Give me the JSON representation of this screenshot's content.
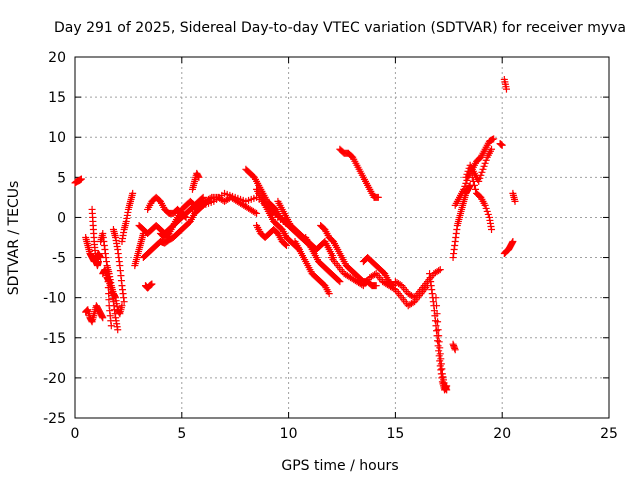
{
  "chart_data": {
    "type": "scatter",
    "title": "Day 291 of 2025, Sidereal Day-to-day VTEC variation (SDTVAR) for receiver myva",
    "xlabel": "GPS time / hours",
    "ylabel": "SDTVAR / TECUs",
    "xlim": [
      0,
      25
    ],
    "ylim": [
      -25,
      20
    ],
    "x_ticks": [
      "0",
      "5",
      "10",
      "15",
      "20",
      "25"
    ],
    "y_ticks": [
      "-25",
      "-20",
      "-15",
      "-10",
      "-5",
      "0",
      "5",
      "10",
      "15",
      "20"
    ],
    "grid": true,
    "marker": "+",
    "color": "#ff0000",
    "segments": [
      {
        "name": "arc-01",
        "x": [
          0.0,
          0.1,
          0.2,
          0.3
        ],
        "y": [
          4.3,
          4.5,
          4.6,
          4.8
        ]
      },
      {
        "name": "arc-02",
        "x": [
          0.5,
          0.6,
          0.7,
          0.8,
          0.9,
          1.0,
          1.1,
          1.2,
          1.3
        ],
        "y": [
          -11.8,
          -11.5,
          -12.5,
          -13.0,
          -12.0,
          -11.0,
          -11.5,
          -12.0,
          -12.5
        ]
      },
      {
        "name": "arc-03",
        "x": [
          0.5,
          0.6,
          0.7,
          0.8,
          0.9,
          1.0,
          1.1,
          1.2
        ],
        "y": [
          -2.5,
          -3.5,
          -4.5,
          -5.0,
          -5.5,
          -5.0,
          -4.5,
          -5.0
        ]
      },
      {
        "name": "arc-04",
        "x": [
          0.8,
          0.85,
          0.9,
          0.95,
          1.0,
          1.05,
          1.1
        ],
        "y": [
          1.0,
          -1.0,
          -3.0,
          -4.5,
          -5.5,
          -6.0,
          -5.5
        ]
      },
      {
        "name": "arc-05",
        "x": [
          1.2,
          1.3,
          1.4,
          1.5,
          1.55,
          1.6,
          1.7
        ],
        "y": [
          -3.0,
          -2.0,
          -4.0,
          -6.0,
          -8.0,
          -11.0,
          -13.5
        ]
      },
      {
        "name": "arc-06",
        "x": [
          1.3,
          1.4,
          1.5,
          1.6,
          1.7,
          1.8,
          1.9,
          2.0
        ],
        "y": [
          -7.0,
          -6.5,
          -7.5,
          -8.0,
          -9.0,
          -10.5,
          -12.5,
          -14.0
        ]
      },
      {
        "name": "arc-07",
        "x": [
          1.5,
          1.6,
          1.7,
          1.8,
          1.9,
          2.0,
          2.1,
          2.2
        ],
        "y": [
          -6.0,
          -7.0,
          -8.5,
          -9.5,
          -10.0,
          -11.5,
          -12.0,
          -11.0
        ]
      },
      {
        "name": "arc-08",
        "x": [
          1.8,
          1.9,
          2.0,
          2.1,
          2.2,
          2.3
        ],
        "y": [
          -1.5,
          -2.5,
          -4.0,
          -6.0,
          -8.5,
          -10.5
        ]
      },
      {
        "name": "arc-09",
        "x": [
          2.2,
          2.3,
          2.4,
          2.5,
          2.6,
          2.7
        ],
        "y": [
          -3.0,
          -1.5,
          -0.5,
          1.0,
          2.0,
          3.0
        ]
      },
      {
        "name": "arc-10",
        "x": [
          2.8,
          2.9,
          3.0,
          3.1,
          3.2
        ],
        "y": [
          -6.0,
          -5.0,
          -4.0,
          -3.0,
          -2.0
        ]
      },
      {
        "name": "arc-11",
        "x": [
          3.3,
          3.4,
          3.5,
          3.6
        ],
        "y": [
          -8.5,
          -8.8,
          -8.5,
          -8.3
        ]
      },
      {
        "name": "arc-12",
        "x": [
          3.2,
          3.4,
          3.6,
          3.8,
          4.0,
          4.2,
          4.4,
          4.6,
          4.8,
          5.0,
          5.2,
          5.4,
          5.6,
          5.8
        ],
        "y": [
          -5.0,
          -4.5,
          -4.0,
          -3.5,
          -3.0,
          -3.2,
          -2.8,
          -2.5,
          -2.0,
          -1.5,
          -1.0,
          -0.5,
          0.5,
          1.0
        ]
      },
      {
        "name": "arc-13",
        "x": [
          3.0,
          3.2,
          3.4,
          3.6,
          3.8,
          4.0,
          4.2,
          4.4,
          4.6,
          4.8,
          5.0,
          5.2,
          5.4,
          5.6,
          5.8,
          6.0
        ],
        "y": [
          -1.0,
          -1.5,
          -2.0,
          -1.5,
          -1.0,
          -1.5,
          -2.0,
          -1.5,
          -1.0,
          -0.5,
          0.0,
          0.5,
          1.0,
          1.5,
          2.0,
          2.5
        ]
      },
      {
        "name": "arc-14",
        "x": [
          3.4,
          3.6,
          3.8,
          4.0,
          4.2,
          4.4,
          4.6,
          4.8,
          5.0,
          5.2
        ],
        "y": [
          1.0,
          2.0,
          2.5,
          2.0,
          1.0,
          0.5,
          0.5,
          1.0,
          0.5,
          0.0
        ]
      },
      {
        "name": "arc-15",
        "x": [
          4.0,
          4.2,
          4.4,
          4.6,
          4.8,
          5.0,
          5.2,
          5.4,
          5.6,
          5.8,
          6.0,
          6.2
        ],
        "y": [
          -2.0,
          -2.5,
          -2.0,
          -1.0,
          0.0,
          1.0,
          1.5,
          2.0,
          1.5,
          1.0,
          1.5,
          2.0
        ]
      },
      {
        "name": "arc-16",
        "x": [
          5.5,
          5.6,
          5.7,
          5.8
        ],
        "y": [
          3.5,
          4.5,
          5.5,
          5.0
        ]
      },
      {
        "name": "arc-17",
        "x": [
          5.5,
          5.8,
          6.1,
          6.4,
          6.7,
          7.0,
          7.3,
          7.6,
          7.9,
          8.2,
          8.5
        ],
        "y": [
          1.0,
          1.5,
          2.0,
          2.5,
          2.5,
          2.0,
          2.5,
          2.0,
          1.5,
          1.0,
          0.5
        ]
      },
      {
        "name": "arc-18",
        "x": [
          6.0,
          6.5,
          7.0,
          7.5,
          8.0,
          8.5,
          9.0,
          9.5,
          10.0
        ],
        "y": [
          1.5,
          2.0,
          3.0,
          2.5,
          2.0,
          2.5,
          1.5,
          0.0,
          -1.0
        ]
      },
      {
        "name": "arc-19",
        "x": [
          8.0,
          8.2,
          8.4,
          8.6,
          8.8,
          9.0,
          9.2,
          9.4,
          9.6,
          9.8,
          10.0,
          10.2,
          10.4,
          10.6
        ],
        "y": [
          6.0,
          5.5,
          5.0,
          4.0,
          3.0,
          2.0,
          1.5,
          1.0,
          0.0,
          -0.5,
          -1.0,
          -1.5,
          -2.0,
          -2.5
        ]
      },
      {
        "name": "arc-20",
        "x": [
          8.5,
          8.7,
          8.9,
          9.1,
          9.3,
          9.5,
          9.7,
          9.9,
          10.1,
          10.3,
          10.5
        ],
        "y": [
          3.5,
          2.5,
          1.5,
          0.5,
          -0.5,
          -1.0,
          -1.5,
          -2.5,
          -3.0,
          -3.5,
          -4.0
        ]
      },
      {
        "name": "arc-21",
        "x": [
          8.5,
          8.7,
          8.9,
          9.1,
          9.3,
          9.5,
          9.7,
          9.9
        ],
        "y": [
          -1.0,
          -2.0,
          -2.5,
          -2.0,
          -1.5,
          -2.0,
          -3.0,
          -3.5
        ]
      },
      {
        "name": "arc-22",
        "x": [
          9.0,
          9.2,
          9.4,
          9.6,
          9.8,
          10.0,
          10.2,
          10.4,
          10.6,
          10.8,
          11.0,
          11.2
        ],
        "y": [
          1.5,
          1.0,
          0.5,
          0.0,
          -0.5,
          -1.0,
          -1.5,
          -2.0,
          -2.5,
          -3.0,
          -3.5,
          -4.0
        ]
      },
      {
        "name": "arc-23",
        "x": [
          9.5,
          9.7,
          9.9,
          10.1,
          10.3,
          10.5,
          10.7,
          10.9,
          11.1,
          11.3,
          11.5,
          11.7,
          11.9,
          12.1
        ],
        "y": [
          2.0,
          1.0,
          0.0,
          -1.0,
          -1.5,
          -2.0,
          -2.5,
          -3.0,
          -3.5,
          -4.0,
          -3.5,
          -3.0,
          -4.0,
          -5.0
        ]
      },
      {
        "name": "arc-24",
        "x": [
          10.3,
          10.5,
          10.7,
          10.9,
          11.1,
          11.3,
          11.5,
          11.7,
          11.9
        ],
        "y": [
          -3.0,
          -4.0,
          -5.0,
          -6.0,
          -7.0,
          -7.5,
          -8.0,
          -8.5,
          -9.5
        ]
      },
      {
        "name": "arc-25",
        "x": [
          10.8,
          11.0,
          11.2,
          11.4,
          11.6,
          11.8,
          12.0,
          12.2,
          12.4
        ],
        "y": [
          -2.5,
          -3.5,
          -4.5,
          -5.5,
          -6.0,
          -6.5,
          -7.0,
          -7.5,
          -8.0
        ]
      },
      {
        "name": "arc-26",
        "x": [
          11.5,
          11.7,
          11.9,
          12.1,
          12.3,
          12.5,
          12.7,
          12.9,
          13.1,
          13.3,
          13.5,
          13.7,
          13.9,
          14.1
        ],
        "y": [
          -1.0,
          -1.5,
          -2.5,
          -3.0,
          -4.0,
          -5.0,
          -6.0,
          -6.5,
          -7.0,
          -7.5,
          -8.0,
          -8.0,
          -8.5,
          -8.5
        ]
      },
      {
        "name": "arc-27",
        "x": [
          12.4,
          12.6,
          12.8,
          13.0,
          13.2,
          13.4,
          13.6,
          13.8,
          14.0,
          14.2
        ],
        "y": [
          8.5,
          8.0,
          8.0,
          7.5,
          6.5,
          5.5,
          4.5,
          3.5,
          2.5,
          2.5
        ]
      },
      {
        "name": "arc-28",
        "x": [
          12.0,
          12.3,
          12.6,
          12.9,
          13.2,
          13.5,
          13.8,
          14.1,
          14.4,
          14.7,
          15.0,
          15.3,
          15.6,
          15.9,
          16.2,
          16.5
        ],
        "y": [
          -5.0,
          -6.0,
          -7.0,
          -7.5,
          -8.0,
          -8.5,
          -7.5,
          -7.0,
          -8.0,
          -8.5,
          -9.0,
          -10.0,
          -11.0,
          -10.5,
          -9.5,
          -8.5
        ]
      },
      {
        "name": "arc-29",
        "x": [
          13.5,
          13.7,
          13.9,
          14.1,
          14.3,
          14.5,
          14.7,
          14.9
        ],
        "y": [
          -5.5,
          -5.0,
          -5.5,
          -6.0,
          -6.5,
          -7.0,
          -8.0,
          -8.5
        ]
      },
      {
        "name": "arc-30",
        "x": [
          15.0,
          15.3,
          15.6,
          15.9,
          16.2,
          16.5,
          16.8,
          17.1
        ],
        "y": [
          -8.0,
          -8.5,
          -9.5,
          -10.0,
          -9.0,
          -8.0,
          -7.0,
          -6.5
        ]
      },
      {
        "name": "arc-31",
        "x": [
          16.6,
          16.7,
          16.8,
          16.9,
          17.0,
          17.1,
          17.2,
          17.3,
          17.4
        ],
        "y": [
          -7.0,
          -9.0,
          -11.0,
          -13.5,
          -16.0,
          -18.5,
          -20.5,
          -21.5,
          -21.0
        ]
      },
      {
        "name": "arc-32",
        "x": [
          16.9,
          17.0,
          17.1,
          17.2,
          17.3,
          17.4
        ],
        "y": [
          -10.0,
          -14.0,
          -17.0,
          -19.5,
          -21.0,
          -21.5
        ]
      },
      {
        "name": "arc-33",
        "x": [
          17.7,
          17.8
        ],
        "y": [
          -15.8,
          -16.5
        ]
      },
      {
        "name": "arc-34",
        "x": [
          17.7,
          17.8,
          17.9,
          18.0,
          18.1,
          18.2,
          18.3,
          18.4,
          18.5
        ],
        "y": [
          -5.0,
          -3.0,
          -1.0,
          0.0,
          1.0,
          2.0,
          3.0,
          3.5,
          4.0
        ]
      },
      {
        "name": "arc-35",
        "x": [
          17.8,
          18.0,
          18.2,
          18.4,
          18.6,
          18.8,
          19.0,
          19.2,
          19.4,
          19.6
        ],
        "y": [
          1.5,
          2.5,
          3.5,
          5.0,
          6.0,
          7.0,
          7.5,
          8.5,
          9.5,
          9.8
        ]
      },
      {
        "name": "arc-36",
        "x": [
          18.3,
          18.5,
          18.7,
          18.9,
          19.1,
          19.3,
          19.5
        ],
        "y": [
          5.0,
          6.5,
          5.5,
          4.5,
          6.0,
          7.5,
          8.5
        ]
      },
      {
        "name": "arc-37",
        "x": [
          18.6,
          18.8,
          19.0,
          19.2,
          19.4,
          19.5
        ],
        "y": [
          5.0,
          3.0,
          2.5,
          1.5,
          0.0,
          -1.5
        ]
      },
      {
        "name": "arc-38",
        "x": [
          19.9,
          20.0
        ],
        "y": [
          9.2,
          9.0
        ]
      },
      {
        "name": "arc-39",
        "x": [
          20.1,
          20.2
        ],
        "y": [
          17.2,
          16.0
        ]
      },
      {
        "name": "arc-40",
        "x": [
          20.1,
          20.2,
          20.3,
          20.4,
          20.5
        ],
        "y": [
          -4.5,
          -4.2,
          -4.0,
          -3.5,
          -3.0
        ]
      },
      {
        "name": "arc-41",
        "x": [
          20.5,
          20.6
        ],
        "y": [
          3.0,
          2.0
        ]
      }
    ]
  }
}
